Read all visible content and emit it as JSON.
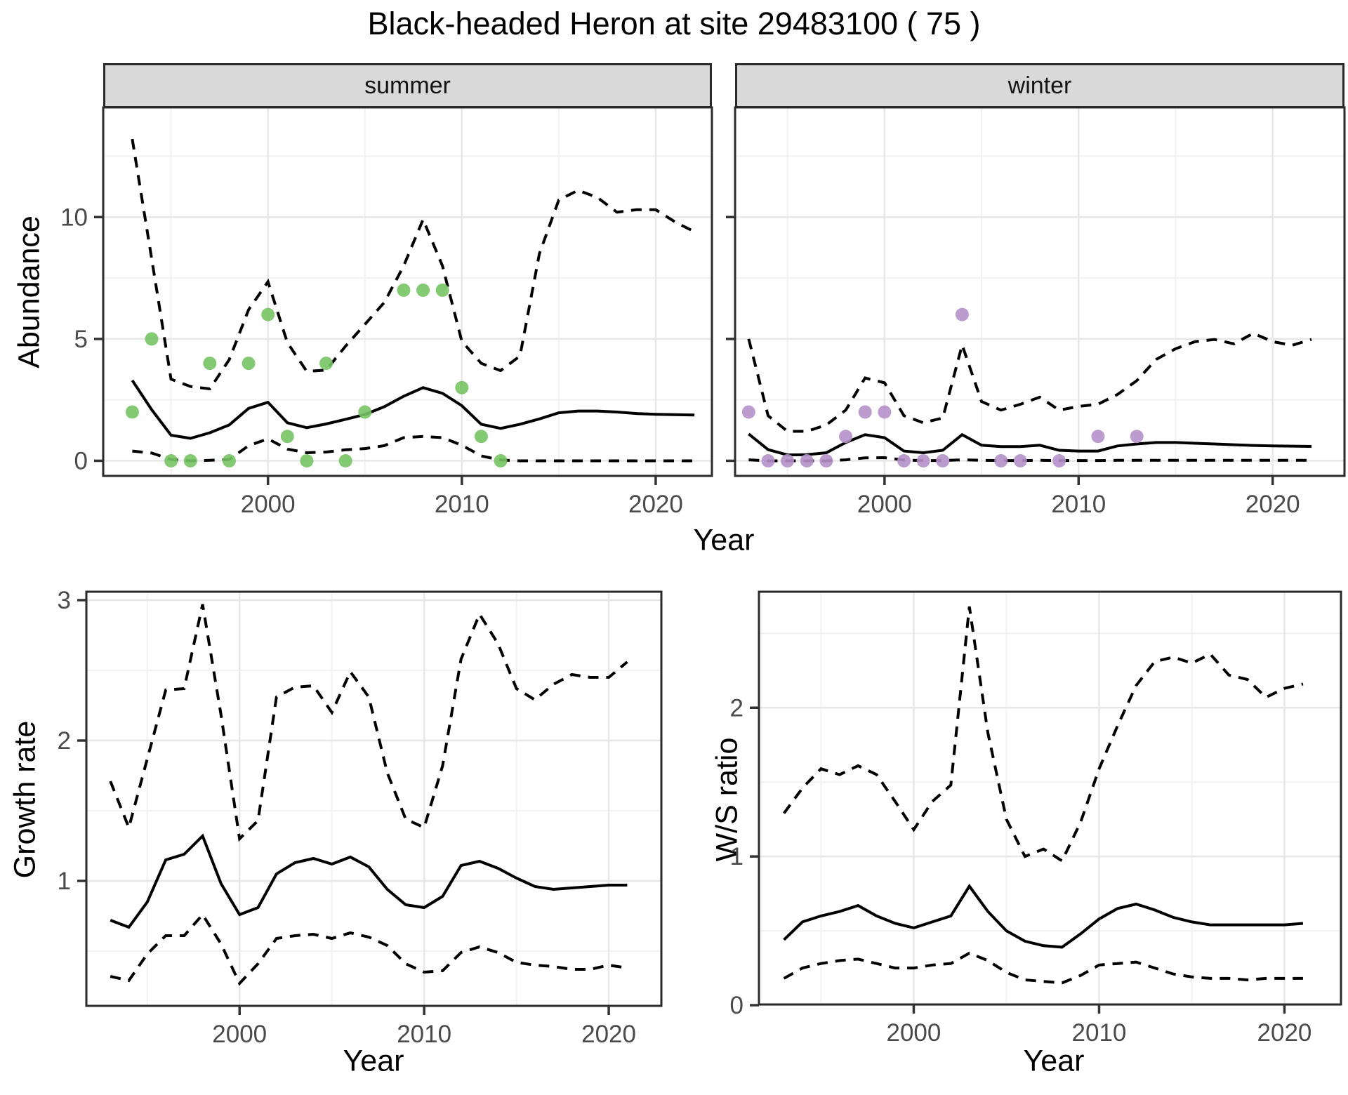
{
  "title": "Black-headed Heron at site 29483100 ( 75 )",
  "top_row": {
    "xlabel": "Year"
  },
  "palette": {
    "summer_points": "#76C464",
    "winter_points": "#B591C9",
    "line": "#000000",
    "grid_major": "#E7E7E7",
    "grid_minor": "#F2F2F2",
    "panel_border": "#2A2A2A",
    "strip_bg": "#D9D9D9",
    "tick_label": "#4A4A4A"
  },
  "chart_data": [
    {
      "id": "abundance-summer",
      "type": "line",
      "facet": "summer",
      "ylabel": "Abundance",
      "xlabel": "Year",
      "xlim": [
        1991.5,
        2022.9
      ],
      "ylim": [
        -0.62,
        14.5
      ],
      "xticks": [
        2000,
        2010,
        2020
      ],
      "yticks": [
        0,
        5,
        10
      ],
      "xminor": [
        1995,
        2005,
        2015
      ],
      "yminor": [
        2.5,
        7.5,
        12.5
      ],
      "show_yticklabels": true,
      "grid": true,
      "legend": "none",
      "years": [
        1993,
        1994,
        1995,
        1996,
        1997,
        1998,
        1999,
        2000,
        2001,
        2002,
        2003,
        2004,
        2005,
        2006,
        2007,
        2008,
        2009,
        2010,
        2011,
        2012,
        2013,
        2014,
        2015,
        2016,
        2017,
        2018,
        2019,
        2020,
        2021,
        2022
      ],
      "series": [
        {
          "name": "upper-credible-interval",
          "style": "dashed",
          "values": [
            13.2,
            8.3,
            3.35,
            3.05,
            2.95,
            4.15,
            6.2,
            7.35,
            4.85,
            3.67,
            3.72,
            4.7,
            5.6,
            6.5,
            8.0,
            9.9,
            8.0,
            4.9,
            4.0,
            3.7,
            4.3,
            8.5,
            10.7,
            11.1,
            10.8,
            10.2,
            10.3,
            10.3,
            9.8,
            9.4
          ]
        },
        {
          "name": "median-abundance",
          "style": "solid",
          "values": [
            3.3,
            2.1,
            1.05,
            0.92,
            1.15,
            1.47,
            2.15,
            2.4,
            1.56,
            1.36,
            1.51,
            1.7,
            1.9,
            2.22,
            2.65,
            3.0,
            2.77,
            2.26,
            1.5,
            1.33,
            1.5,
            1.72,
            1.97,
            2.04,
            2.04,
            2.0,
            1.94,
            1.91,
            1.89,
            1.88
          ]
        },
        {
          "name": "lower-credible-interval",
          "style": "dashed",
          "values": [
            0.4,
            0.32,
            0.05,
            0.0,
            0.02,
            0.05,
            0.62,
            0.9,
            0.48,
            0.33,
            0.36,
            0.45,
            0.5,
            0.62,
            0.95,
            1.0,
            0.95,
            0.64,
            0.2,
            0.03,
            0,
            0,
            0,
            0,
            0,
            0,
            0,
            0,
            0,
            0
          ]
        },
        {
          "name": "observed-counts",
          "style": "points",
          "color": "#76C464",
          "points": [
            [
              1993,
              2
            ],
            [
              1994,
              5
            ],
            [
              1995,
              0
            ],
            [
              1996,
              0
            ],
            [
              1997,
              4
            ],
            [
              1998,
              0
            ],
            [
              1999,
              4
            ],
            [
              2000,
              6
            ],
            [
              2001,
              1
            ],
            [
              2002,
              0
            ],
            [
              2003,
              4
            ],
            [
              2004,
              0
            ],
            [
              2005,
              2
            ],
            [
              2007,
              7
            ],
            [
              2008,
              7
            ],
            [
              2009,
              7
            ],
            [
              2010,
              3
            ],
            [
              2011,
              1
            ],
            [
              2012,
              0
            ]
          ]
        }
      ]
    },
    {
      "id": "abundance-winter",
      "type": "line",
      "facet": "winter",
      "ylabel": "Abundance",
      "xlabel": "Year",
      "xlim": [
        1992.3,
        2023.7
      ],
      "ylim": [
        -0.62,
        14.5
      ],
      "xticks": [
        2000,
        2010,
        2020
      ],
      "yticks": [
        0,
        5,
        10
      ],
      "xminor": [
        1995,
        2005,
        2015
      ],
      "yminor": [
        2.5,
        7.5,
        12.5
      ],
      "show_yticklabels": false,
      "grid": true,
      "legend": "none",
      "years": [
        1993,
        1994,
        1995,
        1996,
        1997,
        1998,
        1999,
        2000,
        2001,
        2002,
        2003,
        2004,
        2005,
        2006,
        2007,
        2008,
        2009,
        2010,
        2011,
        2012,
        2013,
        2014,
        2015,
        2016,
        2017,
        2018,
        2019,
        2020,
        2021,
        2022
      ],
      "series": [
        {
          "name": "upper-credible-interval",
          "style": "dashed",
          "values": [
            5.0,
            1.85,
            1.21,
            1.21,
            1.47,
            2.08,
            3.4,
            3.2,
            1.85,
            1.56,
            1.76,
            4.75,
            2.43,
            2.08,
            2.32,
            2.61,
            2.08,
            2.23,
            2.32,
            2.72,
            3.29,
            4.16,
            4.6,
            4.89,
            4.98,
            4.8,
            5.23,
            4.89,
            4.74,
            4.98
          ]
        },
        {
          "name": "median-abundance",
          "style": "solid",
          "values": [
            1.1,
            0.46,
            0.24,
            0.25,
            0.33,
            0.75,
            1.07,
            0.95,
            0.4,
            0.33,
            0.43,
            1.07,
            0.64,
            0.58,
            0.58,
            0.64,
            0.43,
            0.4,
            0.4,
            0.61,
            0.69,
            0.75,
            0.75,
            0.72,
            0.69,
            0.66,
            0.63,
            0.61,
            0.6,
            0.59
          ]
        },
        {
          "name": "lower-credible-interval",
          "style": "dashed",
          "values": [
            0.04,
            0.0,
            0.0,
            0.0,
            0.0,
            0.04,
            0.12,
            0.13,
            0.03,
            0.01,
            0.01,
            0.04,
            0.02,
            0.01,
            0.01,
            0.02,
            0.01,
            0.01,
            0.01,
            0.02,
            0.02,
            0.02,
            0.02,
            0.02,
            0.02,
            0.02,
            0.02,
            0.02,
            0.02,
            0.02
          ]
        },
        {
          "name": "observed-counts",
          "style": "points",
          "color": "#B591C9",
          "points": [
            [
              1993,
              2
            ],
            [
              1994,
              0
            ],
            [
              1995,
              0
            ],
            [
              1996,
              0
            ],
            [
              1997,
              0
            ],
            [
              1998,
              1
            ],
            [
              1999,
              2
            ],
            [
              2000,
              2
            ],
            [
              2001,
              0
            ],
            [
              2002,
              0
            ],
            [
              2003,
              0
            ],
            [
              2004,
              6
            ],
            [
              2006,
              0
            ],
            [
              2007,
              0
            ],
            [
              2009,
              0
            ],
            [
              2011,
              1
            ],
            [
              2013,
              1
            ]
          ]
        }
      ]
    },
    {
      "id": "growth-rate",
      "type": "line",
      "facet": null,
      "ylabel": "Growth rate",
      "xlabel": "Year",
      "xlim": [
        1991.7,
        2022.85
      ],
      "ylim": [
        0.11,
        3.06
      ],
      "xticks": [
        2000,
        2010,
        2020
      ],
      "yticks": [
        1,
        2,
        3
      ],
      "xminor": [
        1995,
        2005,
        2015
      ],
      "yminor": [
        0.5,
        1.5,
        2.5
      ],
      "show_yticklabels": true,
      "grid": true,
      "legend": "none",
      "years": [
        1993,
        1994,
        1995,
        1996,
        1997,
        1998,
        1999,
        2000,
        2001,
        2002,
        2003,
        2004,
        2005,
        2006,
        2007,
        2008,
        2009,
        2010,
        2011,
        2012,
        2013,
        2014,
        2015,
        2016,
        2017,
        2018,
        2019,
        2020,
        2021
      ],
      "series": [
        {
          "name": "upper-credible-interval",
          "style": "dashed",
          "values": [
            1.71,
            1.38,
            1.87,
            2.36,
            2.37,
            2.97,
            2.18,
            1.3,
            1.43,
            2.31,
            2.38,
            2.39,
            2.2,
            2.49,
            2.31,
            1.77,
            1.44,
            1.38,
            1.82,
            2.58,
            2.9,
            2.69,
            2.37,
            2.29,
            2.4,
            2.47,
            2.45,
            2.45,
            2.56
          ]
        },
        {
          "name": "median-growth-rate",
          "style": "solid",
          "values": [
            0.72,
            0.67,
            0.85,
            1.15,
            1.19,
            1.32,
            0.98,
            0.76,
            0.81,
            1.05,
            1.13,
            1.16,
            1.12,
            1.17,
            1.1,
            0.94,
            0.83,
            0.81,
            0.89,
            1.11,
            1.14,
            1.09,
            1.02,
            0.96,
            0.94,
            0.95,
            0.96,
            0.97,
            0.97
          ]
        },
        {
          "name": "lower-credible-interval",
          "style": "dashed",
          "values": [
            0.32,
            0.29,
            0.48,
            0.61,
            0.61,
            0.76,
            0.55,
            0.27,
            0.41,
            0.59,
            0.61,
            0.62,
            0.59,
            0.63,
            0.6,
            0.54,
            0.41,
            0.35,
            0.36,
            0.49,
            0.53,
            0.49,
            0.42,
            0.4,
            0.39,
            0.37,
            0.37,
            0.4,
            0.38
          ]
        }
      ]
    },
    {
      "id": "winter-summer-ratio",
      "type": "line",
      "facet": null,
      "ylabel": "W/S ratio",
      "xlabel": "Year",
      "xlim": [
        1991.65,
        2023.05
      ],
      "ylim": [
        0.005,
        2.78
      ],
      "xticks": [
        2000,
        2010,
        2020
      ],
      "yticks": [
        0,
        1,
        2
      ],
      "xminor": [
        1995,
        2005,
        2015
      ],
      "yminor": [
        0.5,
        1.5,
        2.5
      ],
      "show_yticklabels": true,
      "grid": true,
      "legend": "none",
      "years": [
        1993,
        1994,
        1995,
        1996,
        1997,
        1998,
        1999,
        2000,
        2001,
        2002,
        2003,
        2004,
        2005,
        2006,
        2007,
        2008,
        2009,
        2010,
        2011,
        2012,
        2013,
        2014,
        2015,
        2016,
        2017,
        2018,
        2019,
        2020,
        2021
      ],
      "series": [
        {
          "name": "upper-credible-interval",
          "style": "dashed",
          "values": [
            1.29,
            1.46,
            1.59,
            1.55,
            1.61,
            1.55,
            1.37,
            1.18,
            1.37,
            1.48,
            2.68,
            1.83,
            1.25,
            1.0,
            1.05,
            0.97,
            1.23,
            1.59,
            1.88,
            2.15,
            2.31,
            2.34,
            2.3,
            2.36,
            2.22,
            2.19,
            2.07,
            2.13,
            2.16
          ]
        },
        {
          "name": "median-ws-ratio",
          "style": "solid",
          "values": [
            0.44,
            0.56,
            0.6,
            0.63,
            0.67,
            0.6,
            0.55,
            0.52,
            0.56,
            0.6,
            0.8,
            0.63,
            0.5,
            0.43,
            0.4,
            0.39,
            0.48,
            0.58,
            0.65,
            0.68,
            0.64,
            0.59,
            0.56,
            0.54,
            0.54,
            0.54,
            0.54,
            0.54,
            0.55
          ]
        },
        {
          "name": "lower-credible-interval",
          "style": "dashed",
          "values": [
            0.18,
            0.25,
            0.28,
            0.3,
            0.31,
            0.28,
            0.25,
            0.25,
            0.27,
            0.28,
            0.35,
            0.3,
            0.22,
            0.17,
            0.16,
            0.15,
            0.2,
            0.27,
            0.28,
            0.29,
            0.25,
            0.21,
            0.19,
            0.18,
            0.18,
            0.17,
            0.18,
            0.18,
            0.18
          ]
        }
      ]
    }
  ]
}
